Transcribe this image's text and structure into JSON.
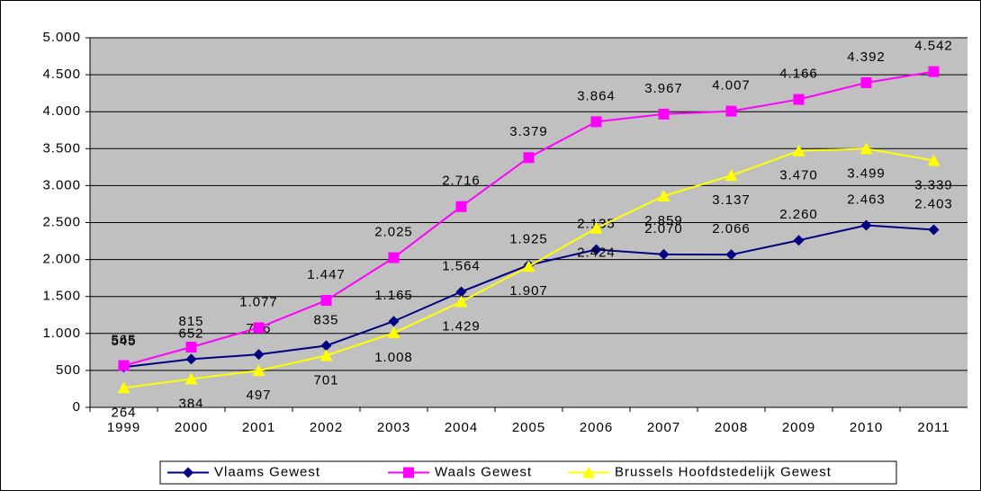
{
  "chart_data": {
    "type": "line",
    "categories": [
      "1999",
      "2000",
      "2001",
      "2002",
      "2003",
      "2004",
      "2005",
      "2006",
      "2007",
      "2008",
      "2009",
      "2010",
      "2011"
    ],
    "series": [
      {
        "name": "Vlaams Gewest",
        "color": "#000080",
        "marker": "diamond",
        "values": [
          545,
          652,
          716,
          835,
          1165,
          1564,
          1925,
          2135,
          2070,
          2066,
          2260,
          2463,
          2403
        ],
        "value_labels": [
          "545",
          "652",
          "716",
          "835",
          "1.165",
          "1.564",
          "1.925",
          "2.135",
          "2.070",
          "2.066",
          "2.260",
          "2.463",
          "2.403"
        ]
      },
      {
        "name": "Waals Gewest",
        "color": "#ff00ff",
        "marker": "square",
        "values": [
          565,
          815,
          1077,
          1447,
          2025,
          2716,
          3379,
          3864,
          3967,
          4007,
          4166,
          4392,
          4542
        ],
        "value_labels": [
          "565",
          "815",
          "1.077",
          "1.447",
          "2.025",
          "2.716",
          "3.379",
          "3.864",
          "3.967",
          "4.007",
          "4.166",
          "4.392",
          "4.542"
        ]
      },
      {
        "name": "Brussels Hoofdstedelijk Gewest",
        "color": "#ffff00",
        "marker": "triangle",
        "values": [
          264,
          384,
          497,
          701,
          1008,
          1429,
          1907,
          2424,
          2859,
          3137,
          3470,
          3499,
          3339
        ],
        "value_labels": [
          "264",
          "384",
          "497",
          "701",
          "1.008",
          "1.429",
          "1.907",
          "2.424",
          "2.859",
          "3.137",
          "3.470",
          "3.499",
          "3.339"
        ]
      }
    ],
    "ylim": [
      0,
      5000
    ],
    "yticks": [
      {
        "value": 0,
        "label": "0"
      },
      {
        "value": 500,
        "label": "500"
      },
      {
        "value": 1000,
        "label": "1.000"
      },
      {
        "value": 1500,
        "label": "1.500"
      },
      {
        "value": 2000,
        "label": "2.000"
      },
      {
        "value": 2500,
        "label": "2.500"
      },
      {
        "value": 3000,
        "label": "3.000"
      },
      {
        "value": 3500,
        "label": "3.500"
      },
      {
        "value": 4000,
        "label": "4.000"
      },
      {
        "value": 4500,
        "label": "4.500"
      },
      {
        "value": 5000,
        "label": "5.000"
      }
    ],
    "grid": true,
    "plot_background": "#c0c0c0",
    "legend": "bottom"
  }
}
